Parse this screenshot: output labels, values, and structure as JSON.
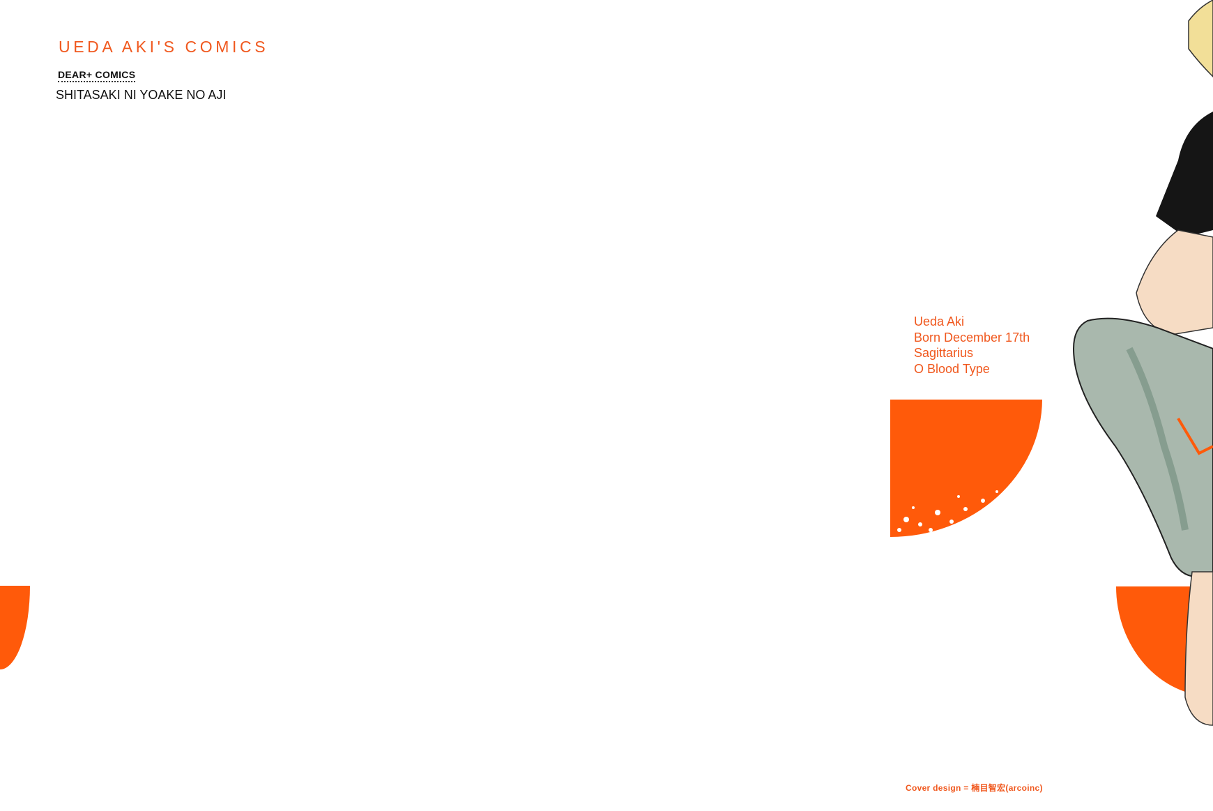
{
  "series_title": "UEDA AKI'S COMICS",
  "imprint_label": "DEAR+ COMICS",
  "book_title": "SHITASAKI NI YOAKE NO AJI",
  "author_bio": {
    "lines": [
      "Ueda Aki",
      "Born December 17th",
      "Sagittarius",
      "O Blood Type"
    ]
  },
  "credit": "Cover design = 楠目智宏(arcoinc)",
  "colors": {
    "accent": "#ff5a0a",
    "text_orange": "#f0581e",
    "pants": "#a9b8ad",
    "shirt": "#151515",
    "skin": "#f6dcc4",
    "hair": "#f2df98"
  }
}
